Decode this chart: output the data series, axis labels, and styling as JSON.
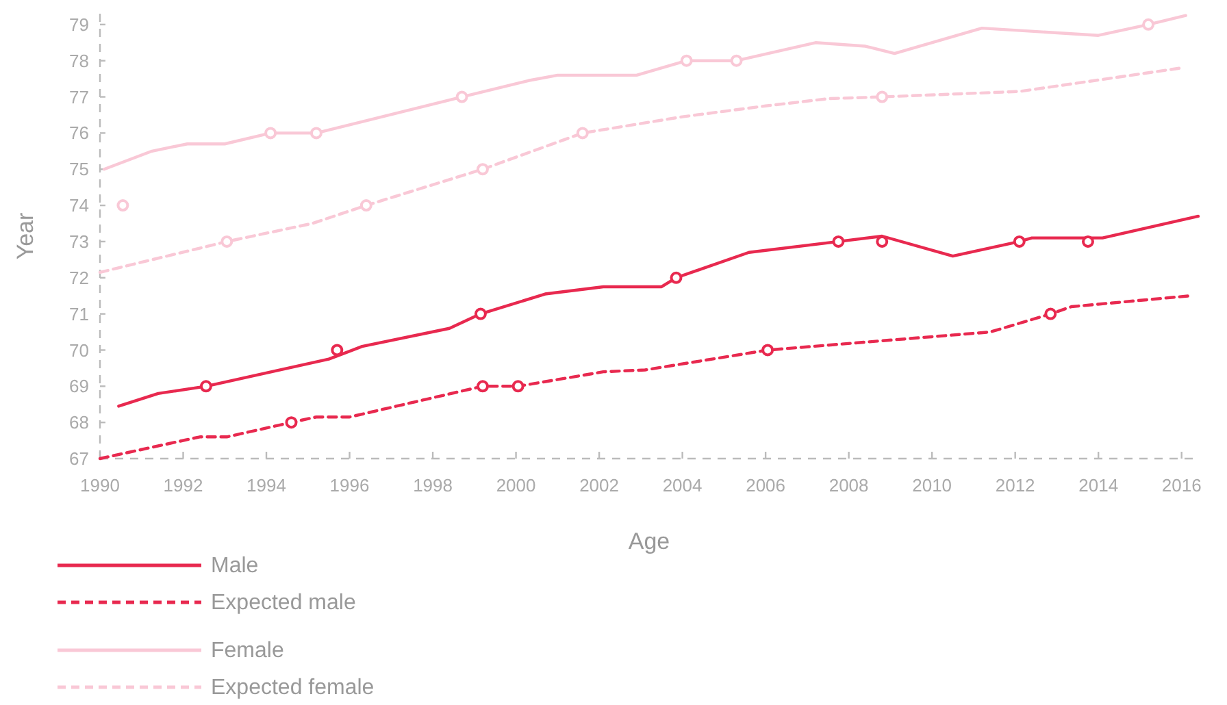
{
  "chart_data": {
    "type": "line",
    "xlabel": "Age",
    "ylabel": "Year",
    "xlim": [
      1990,
      2016.4
    ],
    "ylim": [
      67,
      79.3
    ],
    "xticks": [
      1990,
      1992,
      1994,
      1996,
      1998,
      2000,
      2002,
      2004,
      2006,
      2008,
      2010,
      2012,
      2014,
      2016
    ],
    "yticks": [
      67,
      68,
      69,
      70,
      71,
      72,
      73,
      74,
      75,
      76,
      77,
      78,
      79
    ],
    "legend": "bottom",
    "series": [
      {
        "name": "Male",
        "color": "#e8294f",
        "line_style": "solid",
        "marker": "none",
        "x": [
          1990.45,
          1991.4,
          1992.55,
          1995.5,
          1996.3,
          1998.4,
          1999.15,
          2000.7,
          2002.1,
          2003.5,
          2003.85,
          2005.6,
          2007.75,
          2008.8,
          2010.5,
          2012.1,
          2012.4,
          2014.1,
          2016.4
        ],
        "values": [
          68.45,
          68.8,
          69,
          69.75,
          70.1,
          70.6,
          71,
          71.55,
          71.75,
          71.75,
          72,
          72.7,
          73,
          73.15,
          72.6,
          73,
          73.1,
          73.1,
          73.7
        ]
      },
      {
        "name": "Expected male",
        "color": "#e8294f",
        "line_style": "dashed",
        "marker": "none",
        "x": [
          1990,
          1992.4,
          1993.05,
          1994.6,
          1995.2,
          1996,
          1999.2,
          2000.05,
          2002.1,
          2003.1,
          2006.05,
          2011.4,
          2012.85,
          2013.35,
          2016.2
        ],
        "values": [
          67,
          67.6,
          67.6,
          68,
          68.15,
          68.15,
          69,
          69,
          69.4,
          69.45,
          70,
          70.5,
          71,
          71.2,
          71.5
        ]
      },
      {
        "name": "Female",
        "color": "#f9c8d6",
        "line_style": "solid",
        "marker": "none",
        "x": [
          1990.1,
          1991.25,
          1992.1,
          1993,
          1994.1,
          1995.2,
          1998.7,
          2000.3,
          2001,
          2002.9,
          2004.1,
          2005.3,
          2007.2,
          2008.4,
          2009.1,
          2011.2,
          2014,
          2015.2,
          2016.1
        ],
        "values": [
          75,
          75.5,
          75.7,
          75.7,
          76,
          76,
          77,
          77.45,
          77.6,
          77.6,
          78,
          78,
          78.5,
          78.4,
          78.2,
          78.9,
          78.7,
          79,
          79.25
        ]
      },
      {
        "name": "Expected female",
        "color": "#f9c8d6",
        "line_style": "dashed",
        "marker": "none",
        "x": [
          1990,
          1993.05,
          1995.1,
          1996.4,
          1999.2,
          2001.6,
          2004,
          2006,
          2007.5,
          2008.8,
          2012.1,
          2016
        ],
        "values": [
          72.15,
          73,
          73.5,
          74,
          75,
          76,
          76.45,
          76.75,
          76.95,
          77,
          77.15,
          77.8
        ]
      },
      {
        "type": "scatter",
        "color": "#e8294f",
        "marker": "circle",
        "x": [
          1992.55,
          1995.7,
          1999.15,
          2003.85,
          2007.75,
          2008.8,
          2012.1,
          2013.75
        ],
        "values": [
          69,
          70,
          71,
          72,
          73,
          73,
          73,
          73
        ]
      },
      {
        "type": "scatter",
        "color": "#e8294f",
        "marker": "circle",
        "x": [
          1994.6,
          1999.2,
          2000.05,
          2006.05,
          2012.85
        ],
        "values": [
          68,
          69,
          69,
          70,
          71
        ]
      },
      {
        "type": "scatter",
        "color": "#f9c8d6",
        "marker": "circle",
        "x": [
          1990.55,
          1994.1,
          1995.2,
          1998.7,
          2004.1,
          2005.3,
          2015.2
        ],
        "values": [
          74,
          76,
          76,
          77,
          78,
          78,
          79
        ]
      },
      {
        "type": "scatter",
        "color": "#f9c8d6",
        "marker": "circle",
        "x": [
          1993.05,
          1996.4,
          1999.2,
          2001.6,
          2008.8
        ],
        "values": [
          73,
          74,
          75,
          76,
          77
        ]
      }
    ]
  }
}
